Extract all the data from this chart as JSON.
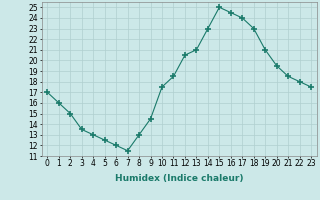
{
  "x": [
    0,
    1,
    2,
    3,
    4,
    5,
    6,
    7,
    8,
    9,
    10,
    11,
    12,
    13,
    14,
    15,
    16,
    17,
    18,
    19,
    20,
    21,
    22,
    23
  ],
  "y": [
    17,
    16,
    15,
    13.5,
    13,
    12.5,
    12,
    11.5,
    13,
    14.5,
    17.5,
    18.5,
    20.5,
    21,
    23,
    25,
    24.5,
    24,
    23,
    21,
    19.5,
    18.5,
    18,
    17.5
  ],
  "line_color": "#1a7a6a",
  "marker": "+",
  "marker_size": 4,
  "marker_lw": 1.2,
  "bg_color": "#cce8e8",
  "grid_color": "#b0cfcf",
  "xlabel": "Humidex (Indice chaleur)",
  "xlim": [
    -0.5,
    23.5
  ],
  "ylim": [
    11,
    25.5
  ],
  "yticks": [
    11,
    12,
    13,
    14,
    15,
    16,
    17,
    18,
    19,
    20,
    21,
    22,
    23,
    24,
    25
  ],
  "xticks": [
    0,
    1,
    2,
    3,
    4,
    5,
    6,
    7,
    8,
    9,
    10,
    11,
    12,
    13,
    14,
    15,
    16,
    17,
    18,
    19,
    20,
    21,
    22,
    23
  ],
  "tick_fontsize": 5.5,
  "label_fontsize": 6.5
}
